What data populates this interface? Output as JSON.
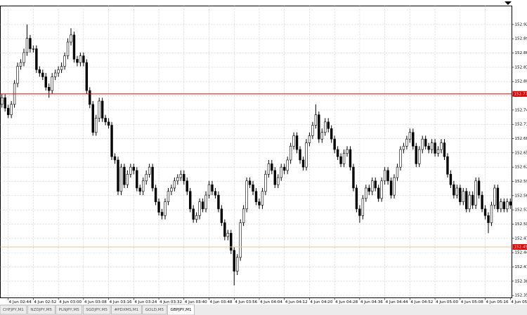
{
  "chart_data": {
    "type": "candlestick",
    "categories": [
      null,
      null,
      "4 Jun 02:44",
      null,
      null,
      null,
      null,
      null,
      null,
      null,
      "4 Jun 02:52",
      null,
      null,
      null,
      null,
      null,
      null,
      null,
      "4 Jun 03:00",
      null,
      null,
      null,
      null,
      null,
      null,
      null,
      "4 Jun 03:08",
      null,
      null,
      null,
      null,
      null,
      null,
      null,
      "4 Jun 03:16",
      null,
      null,
      null,
      null,
      null,
      null,
      null,
      "4 Jun 03:24",
      null,
      null,
      null,
      null,
      null,
      null,
      null,
      "4 Jun 03:32",
      null,
      null,
      null,
      null,
      null,
      null,
      null,
      "4 Jun 03:40",
      null,
      null,
      null,
      null,
      null,
      null,
      null,
      "4 Jun 03:48",
      null,
      null,
      null,
      null,
      null,
      null,
      null,
      "4 Jun 03:56",
      null,
      null,
      null,
      null,
      null,
      null,
      null,
      "4 Jun 04:04",
      null,
      null,
      null,
      null,
      null,
      null,
      null,
      "4 Jun 04:12",
      null,
      null,
      null,
      null,
      null,
      null,
      null,
      "4 Jun 04:20",
      null,
      null,
      null,
      null,
      null,
      null,
      null,
      "4 Jun 04:28",
      null,
      null,
      null,
      null,
      null,
      null,
      null,
      "4 Jun 04:36",
      null,
      null,
      null,
      null,
      null,
      null,
      null,
      "4 Jun 04:44",
      null,
      null,
      null,
      null,
      null,
      null,
      null,
      "4 Jun 04:52",
      null,
      null,
      null,
      null,
      null,
      null,
      null,
      "4 Jun 05:00",
      null,
      null,
      null,
      null,
      null,
      null,
      null,
      "4 Jun 05:08",
      null,
      null,
      null,
      null,
      null,
      null,
      null,
      "4 Jun 05:16",
      null,
      null,
      null,
      null,
      null,
      null,
      null,
      "4 Jun 05:24"
    ],
    "open": [
      152.757,
      152.771,
      152.749,
      152.735,
      152.757,
      152.801,
      152.837,
      152.845,
      152.866,
      152.896,
      152.874,
      152.874,
      152.83,
      152.823,
      152.815,
      152.793,
      152.786,
      152.815,
      152.823,
      152.83,
      152.837,
      152.859,
      152.888,
      152.903,
      152.852,
      152.845,
      152.859,
      152.845,
      152.786,
      152.757,
      152.698,
      152.728,
      152.764,
      152.728,
      152.72,
      152.713,
      152.647,
      152.64,
      152.574,
      152.625,
      152.588,
      152.61,
      152.625,
      152.618,
      152.581,
      152.574,
      152.596,
      152.61,
      152.625,
      152.581,
      152.552,
      152.53,
      152.523,
      152.552,
      152.574,
      152.581,
      152.596,
      152.603,
      152.61,
      152.596,
      152.574,
      152.537,
      152.515,
      152.523,
      152.552,
      152.537,
      152.566,
      152.588,
      152.574,
      152.566,
      152.537,
      152.508,
      152.479,
      152.486,
      152.45,
      152.406,
      152.435,
      152.508,
      152.537,
      152.596,
      152.588,
      152.574,
      152.552,
      152.545,
      152.574,
      152.61,
      152.632,
      152.618,
      152.588,
      152.603,
      152.625,
      152.618,
      152.64,
      152.669,
      152.691,
      152.662,
      152.64,
      152.625,
      152.676,
      152.691,
      152.713,
      152.735,
      152.684,
      152.698,
      152.72,
      152.706,
      152.684,
      152.662,
      152.647,
      152.632,
      152.654,
      152.662,
      152.625,
      152.581,
      152.537,
      152.523,
      152.559,
      152.581,
      152.574,
      152.596,
      152.581,
      152.559,
      152.596,
      152.618,
      152.596,
      152.566,
      152.603,
      152.625,
      152.662,
      152.669,
      152.684,
      152.698,
      152.669,
      152.632,
      152.662,
      152.684,
      152.669,
      152.662,
      152.676,
      152.654,
      152.662,
      152.676,
      152.647,
      152.61,
      152.588,
      152.566,
      152.581,
      152.552,
      152.574,
      152.537,
      152.566,
      152.545,
      152.596,
      152.566,
      152.537,
      152.523,
      152.508,
      152.545,
      152.581,
      152.537,
      152.552,
      152.537,
      152.552
    ],
    "high": [
      152.778,
      152.778,
      152.756,
      152.764,
      152.808,
      152.845,
      152.852,
      152.874,
      152.925,
      152.903,
      152.881,
      152.881,
      152.837,
      152.83,
      152.823,
      152.801,
      152.823,
      152.83,
      152.837,
      152.845,
      152.866,
      152.896,
      152.917,
      152.91,
      152.859,
      152.866,
      152.866,
      152.852,
      152.793,
      152.764,
      152.735,
      152.771,
      152.771,
      152.735,
      152.728,
      152.72,
      152.654,
      152.647,
      152.632,
      152.632,
      152.618,
      152.632,
      152.632,
      152.625,
      152.588,
      152.603,
      152.618,
      152.632,
      152.632,
      152.588,
      152.559,
      152.537,
      152.559,
      152.581,
      152.588,
      152.603,
      152.61,
      152.618,
      152.618,
      152.603,
      152.581,
      152.545,
      152.53,
      152.559,
      152.559,
      152.574,
      152.596,
      152.596,
      152.581,
      152.574,
      152.545,
      152.515,
      152.493,
      152.493,
      152.457,
      152.442,
      152.515,
      152.545,
      152.603,
      152.603,
      152.596,
      152.581,
      152.559,
      152.581,
      152.618,
      152.64,
      152.64,
      152.625,
      152.61,
      152.632,
      152.632,
      152.647,
      152.676,
      152.698,
      152.698,
      152.669,
      152.647,
      152.684,
      152.698,
      152.72,
      152.757,
      152.742,
      152.706,
      152.728,
      152.728,
      152.713,
      152.691,
      152.669,
      152.654,
      152.662,
      152.669,
      152.669,
      152.632,
      152.588,
      152.545,
      152.566,
      152.588,
      152.588,
      152.603,
      152.603,
      152.588,
      152.603,
      152.625,
      152.625,
      152.603,
      152.61,
      152.632,
      152.669,
      152.676,
      152.691,
      152.706,
      152.706,
      152.676,
      152.669,
      152.691,
      152.691,
      152.676,
      152.684,
      152.684,
      152.669,
      152.684,
      152.684,
      152.654,
      152.618,
      152.596,
      152.588,
      152.588,
      152.581,
      152.581,
      152.574,
      152.574,
      152.603,
      152.603,
      152.574,
      152.545,
      152.53,
      152.552,
      152.588,
      152.588,
      152.559,
      152.559,
      152.559,
      152.559
    ],
    "low": [
      152.75,
      152.742,
      152.728,
      152.728,
      152.75,
      152.793,
      152.83,
      152.837,
      152.859,
      152.866,
      152.866,
      152.823,
      152.815,
      152.808,
      152.786,
      152.771,
      152.779,
      152.808,
      152.815,
      152.823,
      152.83,
      152.852,
      152.881,
      152.845,
      152.837,
      152.837,
      152.837,
      152.779,
      152.749,
      152.691,
      152.691,
      152.72,
      152.72,
      152.713,
      152.706,
      152.64,
      152.632,
      152.566,
      152.566,
      152.581,
      152.581,
      152.603,
      152.61,
      152.574,
      152.566,
      152.566,
      152.588,
      152.603,
      152.574,
      152.545,
      152.523,
      152.515,
      152.515,
      152.545,
      152.566,
      152.574,
      152.588,
      152.596,
      152.588,
      152.566,
      152.53,
      152.508,
      152.508,
      152.515,
      152.53,
      152.53,
      152.559,
      152.566,
      152.559,
      152.53,
      152.501,
      152.471,
      152.471,
      152.442,
      152.376,
      152.398,
      152.428,
      152.501,
      152.53,
      152.581,
      152.566,
      152.545,
      152.537,
      152.537,
      152.566,
      152.603,
      152.61,
      152.581,
      152.581,
      152.596,
      152.61,
      152.61,
      152.632,
      152.662,
      152.654,
      152.632,
      152.618,
      152.618,
      152.669,
      152.684,
      152.706,
      152.676,
      152.676,
      152.691,
      152.698,
      152.676,
      152.654,
      152.64,
      152.625,
      152.625,
      152.647,
      152.618,
      152.574,
      152.53,
      152.508,
      152.515,
      152.552,
      152.566,
      152.566,
      152.574,
      152.552,
      152.552,
      152.588,
      152.588,
      152.559,
      152.559,
      152.596,
      152.618,
      152.654,
      152.662,
      152.676,
      152.662,
      152.625,
      152.625,
      152.654,
      152.662,
      152.654,
      152.654,
      152.647,
      152.647,
      152.654,
      152.64,
      152.603,
      152.581,
      152.559,
      152.559,
      152.545,
      152.545,
      152.53,
      152.53,
      152.537,
      152.537,
      152.559,
      152.53,
      152.515,
      152.486,
      152.501,
      152.537,
      152.53,
      152.53,
      152.53,
      152.53,
      152.537
    ],
    "close": [
      152.771,
      152.749,
      152.735,
      152.757,
      152.801,
      152.837,
      152.845,
      152.866,
      152.896,
      152.874,
      152.874,
      152.83,
      152.823,
      152.815,
      152.793,
      152.786,
      152.815,
      152.823,
      152.83,
      152.837,
      152.859,
      152.888,
      152.903,
      152.852,
      152.845,
      152.859,
      152.845,
      152.786,
      152.757,
      152.698,
      152.728,
      152.764,
      152.728,
      152.72,
      152.713,
      152.647,
      152.64,
      152.574,
      152.625,
      152.588,
      152.61,
      152.625,
      152.618,
      152.581,
      152.574,
      152.596,
      152.61,
      152.625,
      152.581,
      152.552,
      152.53,
      152.523,
      152.552,
      152.574,
      152.581,
      152.596,
      152.603,
      152.61,
      152.596,
      152.574,
      152.537,
      152.515,
      152.523,
      152.552,
      152.537,
      152.566,
      152.588,
      152.574,
      152.566,
      152.537,
      152.508,
      152.479,
      152.486,
      152.45,
      152.406,
      152.435,
      152.508,
      152.537,
      152.596,
      152.588,
      152.574,
      152.552,
      152.545,
      152.574,
      152.61,
      152.632,
      152.618,
      152.588,
      152.603,
      152.625,
      152.618,
      152.64,
      152.669,
      152.691,
      152.662,
      152.64,
      152.625,
      152.676,
      152.691,
      152.713,
      152.735,
      152.684,
      152.698,
      152.72,
      152.706,
      152.684,
      152.662,
      152.647,
      152.632,
      152.654,
      152.662,
      152.625,
      152.581,
      152.537,
      152.523,
      152.559,
      152.581,
      152.574,
      152.596,
      152.581,
      152.559,
      152.596,
      152.618,
      152.596,
      152.566,
      152.603,
      152.625,
      152.662,
      152.669,
      152.684,
      152.698,
      152.669,
      152.632,
      152.662,
      152.684,
      152.669,
      152.662,
      152.676,
      152.654,
      152.662,
      152.676,
      152.647,
      152.61,
      152.588,
      152.566,
      152.581,
      152.552,
      152.574,
      152.537,
      152.566,
      152.545,
      152.596,
      152.566,
      152.537,
      152.523,
      152.508,
      152.545,
      152.581,
      152.537,
      152.552,
      152.537,
      152.552,
      152.545
    ],
    "up_color": "#ffffff",
    "down_color": "#000000",
    "wick_color": "#000000",
    "ylim": [
      152.35,
      152.964
    ],
    "yticks": [
      152.925,
      152.895,
      152.865,
      152.835,
      152.805,
      152.775,
      152.745,
      152.715,
      152.685,
      152.655,
      152.625,
      152.595,
      152.565,
      152.535,
      152.505,
      152.475,
      152.445,
      152.415,
      152.385,
      152.355
    ],
    "grid": true,
    "hlines": [
      {
        "value": 152.779,
        "color": "#e00000"
      },
      {
        "value": 152.457,
        "color": "#f2b8a0"
      }
    ]
  },
  "tabs": [
    "CHFJPY,M1",
    "NZDJPY,M5",
    "PLNJPY,M5",
    "SGDJPY,M5",
    "#PDXMS,M1",
    "GOLD,M5",
    "GBPJPY,M1"
  ],
  "active_tab": 6
}
